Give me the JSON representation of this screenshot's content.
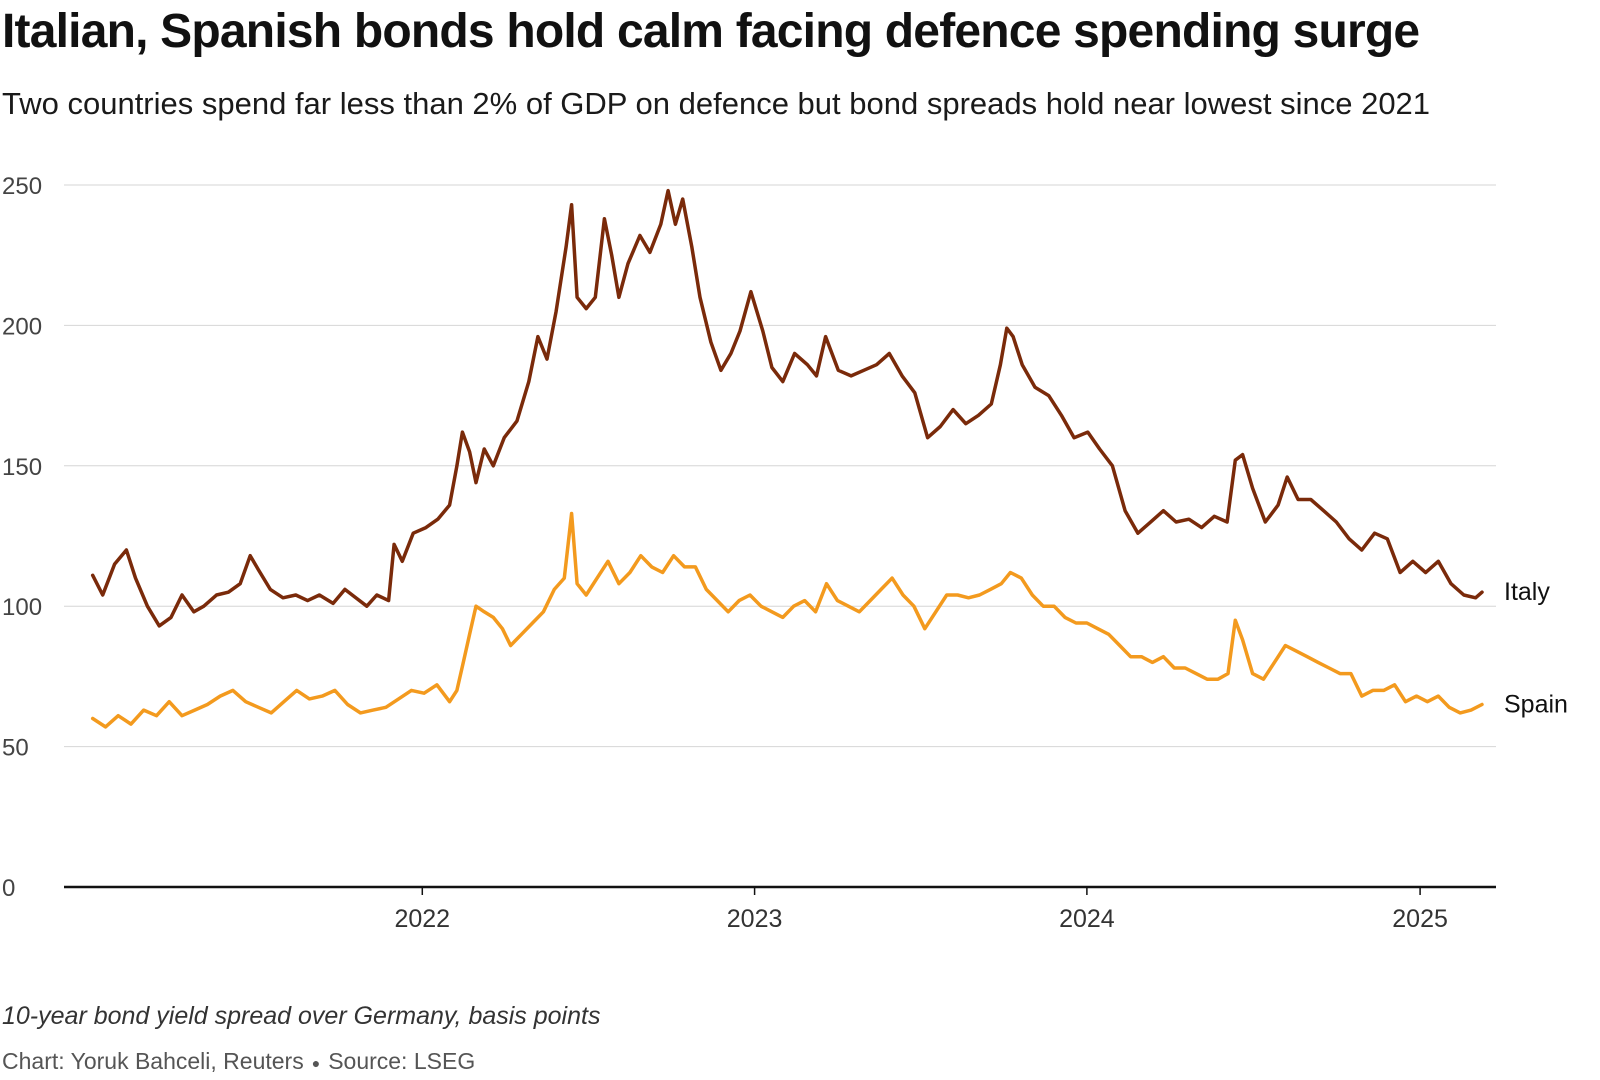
{
  "header": {
    "title": "Italian, Spanish bonds hold calm facing defence spending surge",
    "subtitle": "Two countries spend far less than 2% of GDP on defence but bond spreads hold near lowest since 2021"
  },
  "footer": {
    "note": "10-year bond yield spread over Germany, basis points",
    "credit_author": "Chart: Yoruk Bahceli, Reuters",
    "credit_source": "Source: LSEG"
  },
  "chart_data": {
    "type": "line",
    "title": "Italian, Spanish bonds hold calm facing defence spending surge",
    "ylabel": "",
    "xlabel": "",
    "ylim": [
      0,
      250
    ],
    "yticks": [
      "0",
      "50",
      "100",
      "150",
      "200",
      "250"
    ],
    "xlim": [
      "2021-01-01",
      "2025-03-10"
    ],
    "xticks": [
      "2022",
      "2023",
      "2024",
      "2025"
    ],
    "grid": true,
    "legend": "direct labels at line ends",
    "colors": {
      "Italy": "#7a2a0a",
      "Spain": "#f39a1e"
    },
    "series": [
      {
        "name": "Italy",
        "points": [
          [
            "2021-01-04",
            111
          ],
          [
            "2021-01-15",
            104
          ],
          [
            "2021-01-28",
            115
          ],
          [
            "2021-02-10",
            120
          ],
          [
            "2021-02-20",
            110
          ],
          [
            "2021-03-05",
            100
          ],
          [
            "2021-03-18",
            93
          ],
          [
            "2021-03-31",
            96
          ],
          [
            "2021-04-12",
            104
          ],
          [
            "2021-04-25",
            98
          ],
          [
            "2021-05-06",
            100
          ],
          [
            "2021-05-20",
            104
          ],
          [
            "2021-06-02",
            105
          ],
          [
            "2021-06-15",
            108
          ],
          [
            "2021-06-26",
            118
          ],
          [
            "2021-07-05",
            113
          ],
          [
            "2021-07-18",
            106
          ],
          [
            "2021-08-01",
            103
          ],
          [
            "2021-08-15",
            104
          ],
          [
            "2021-08-28",
            102
          ],
          [
            "2021-09-10",
            104
          ],
          [
            "2021-09-25",
            101
          ],
          [
            "2021-10-08",
            106
          ],
          [
            "2021-10-20",
            103
          ],
          [
            "2021-11-01",
            100
          ],
          [
            "2021-11-12",
            104
          ],
          [
            "2021-11-25",
            102
          ],
          [
            "2021-12-01",
            122
          ],
          [
            "2021-12-10",
            116
          ],
          [
            "2021-12-22",
            126
          ],
          [
            "2022-01-05",
            128
          ],
          [
            "2022-01-18",
            131
          ],
          [
            "2022-01-31",
            136
          ],
          [
            "2022-02-08",
            150
          ],
          [
            "2022-02-14",
            162
          ],
          [
            "2022-02-22",
            155
          ],
          [
            "2022-03-01",
            144
          ],
          [
            "2022-03-10",
            156
          ],
          [
            "2022-03-20",
            150
          ],
          [
            "2022-04-01",
            160
          ],
          [
            "2022-04-15",
            166
          ],
          [
            "2022-04-28",
            180
          ],
          [
            "2022-05-08",
            196
          ],
          [
            "2022-05-18",
            188
          ],
          [
            "2022-05-28",
            205
          ],
          [
            "2022-06-08",
            228
          ],
          [
            "2022-06-14",
            243
          ],
          [
            "2022-06-20",
            210
          ],
          [
            "2022-06-30",
            206
          ],
          [
            "2022-07-10",
            210
          ],
          [
            "2022-07-20",
            238
          ],
          [
            "2022-07-28",
            225
          ],
          [
            "2022-08-05",
            210
          ],
          [
            "2022-08-15",
            222
          ],
          [
            "2022-08-28",
            232
          ],
          [
            "2022-09-08",
            226
          ],
          [
            "2022-09-20",
            236
          ],
          [
            "2022-09-28",
            248
          ],
          [
            "2022-10-06",
            236
          ],
          [
            "2022-10-14",
            245
          ],
          [
            "2022-10-24",
            228
          ],
          [
            "2022-11-02",
            210
          ],
          [
            "2022-11-14",
            194
          ],
          [
            "2022-11-25",
            184
          ],
          [
            "2022-12-06",
            190
          ],
          [
            "2022-12-16",
            198
          ],
          [
            "2022-12-28",
            212
          ],
          [
            "2023-01-10",
            198
          ],
          [
            "2023-01-20",
            185
          ],
          [
            "2023-02-01",
            180
          ],
          [
            "2023-02-14",
            190
          ],
          [
            "2023-02-28",
            186
          ],
          [
            "2023-03-10",
            182
          ],
          [
            "2023-03-20",
            196
          ],
          [
            "2023-04-03",
            184
          ],
          [
            "2023-04-17",
            182
          ],
          [
            "2023-05-01",
            184
          ],
          [
            "2023-05-15",
            186
          ],
          [
            "2023-05-29",
            190
          ],
          [
            "2023-06-12",
            182
          ],
          [
            "2023-06-26",
            176
          ],
          [
            "2023-07-10",
            160
          ],
          [
            "2023-07-24",
            164
          ],
          [
            "2023-08-07",
            170
          ],
          [
            "2023-08-21",
            165
          ],
          [
            "2023-09-04",
            168
          ],
          [
            "2023-09-18",
            172
          ],
          [
            "2023-09-28",
            186
          ],
          [
            "2023-10-05",
            199
          ],
          [
            "2023-10-12",
            196
          ],
          [
            "2023-10-22",
            186
          ],
          [
            "2023-11-05",
            178
          ],
          [
            "2023-11-20",
            175
          ],
          [
            "2023-12-04",
            168
          ],
          [
            "2023-12-18",
            160
          ],
          [
            "2024-01-02",
            162
          ],
          [
            "2024-01-15",
            156
          ],
          [
            "2024-01-29",
            150
          ],
          [
            "2024-02-12",
            134
          ],
          [
            "2024-02-26",
            126
          ],
          [
            "2024-03-11",
            130
          ],
          [
            "2024-03-25",
            134
          ],
          [
            "2024-04-08",
            130
          ],
          [
            "2024-04-22",
            131
          ],
          [
            "2024-05-06",
            128
          ],
          [
            "2024-05-20",
            132
          ],
          [
            "2024-06-03",
            130
          ],
          [
            "2024-06-12",
            152
          ],
          [
            "2024-06-20",
            154
          ],
          [
            "2024-07-01",
            142
          ],
          [
            "2024-07-15",
            130
          ],
          [
            "2024-07-29",
            136
          ],
          [
            "2024-08-08",
            146
          ],
          [
            "2024-08-20",
            138
          ],
          [
            "2024-09-03",
            138
          ],
          [
            "2024-09-17",
            134
          ],
          [
            "2024-10-01",
            130
          ],
          [
            "2024-10-15",
            124
          ],
          [
            "2024-10-29",
            120
          ],
          [
            "2024-11-12",
            126
          ],
          [
            "2024-11-26",
            124
          ],
          [
            "2024-12-10",
            112
          ],
          [
            "2024-12-24",
            116
          ],
          [
            "2025-01-07",
            112
          ],
          [
            "2025-01-21",
            116
          ],
          [
            "2025-02-04",
            108
          ],
          [
            "2025-02-18",
            104
          ],
          [
            "2025-03-03",
            103
          ],
          [
            "2025-03-10",
            105
          ]
        ]
      },
      {
        "name": "Spain",
        "points": [
          [
            "2021-01-04",
            60
          ],
          [
            "2021-01-18",
            57
          ],
          [
            "2021-02-01",
            61
          ],
          [
            "2021-02-15",
            58
          ],
          [
            "2021-03-01",
            63
          ],
          [
            "2021-03-15",
            61
          ],
          [
            "2021-03-29",
            66
          ],
          [
            "2021-04-12",
            61
          ],
          [
            "2021-04-26",
            63
          ],
          [
            "2021-05-10",
            65
          ],
          [
            "2021-05-24",
            68
          ],
          [
            "2021-06-07",
            70
          ],
          [
            "2021-06-21",
            66
          ],
          [
            "2021-07-05",
            64
          ],
          [
            "2021-07-19",
            62
          ],
          [
            "2021-08-02",
            66
          ],
          [
            "2021-08-16",
            70
          ],
          [
            "2021-08-30",
            67
          ],
          [
            "2021-09-13",
            68
          ],
          [
            "2021-09-27",
            70
          ],
          [
            "2021-10-11",
            65
          ],
          [
            "2021-10-25",
            62
          ],
          [
            "2021-11-08",
            63
          ],
          [
            "2021-11-22",
            64
          ],
          [
            "2021-12-06",
            67
          ],
          [
            "2021-12-20",
            70
          ],
          [
            "2022-01-03",
            69
          ],
          [
            "2022-01-17",
            72
          ],
          [
            "2022-01-31",
            66
          ],
          [
            "2022-02-08",
            70
          ],
          [
            "2022-02-15",
            80
          ],
          [
            "2022-02-22",
            90
          ],
          [
            "2022-03-01",
            100
          ],
          [
            "2022-03-10",
            98
          ],
          [
            "2022-03-20",
            96
          ],
          [
            "2022-03-30",
            92
          ],
          [
            "2022-04-08",
            86
          ],
          [
            "2022-04-20",
            90
          ],
          [
            "2022-05-02",
            94
          ],
          [
            "2022-05-14",
            98
          ],
          [
            "2022-05-26",
            106
          ],
          [
            "2022-06-06",
            110
          ],
          [
            "2022-06-14",
            133
          ],
          [
            "2022-06-20",
            108
          ],
          [
            "2022-06-30",
            104
          ],
          [
            "2022-07-12",
            110
          ],
          [
            "2022-07-24",
            116
          ],
          [
            "2022-08-05",
            108
          ],
          [
            "2022-08-17",
            112
          ],
          [
            "2022-08-29",
            118
          ],
          [
            "2022-09-10",
            114
          ],
          [
            "2022-09-22",
            112
          ],
          [
            "2022-10-04",
            118
          ],
          [
            "2022-10-16",
            114
          ],
          [
            "2022-10-28",
            114
          ],
          [
            "2022-11-09",
            106
          ],
          [
            "2022-11-21",
            102
          ],
          [
            "2022-12-03",
            98
          ],
          [
            "2022-12-15",
            102
          ],
          [
            "2022-12-27",
            104
          ],
          [
            "2023-01-08",
            100
          ],
          [
            "2023-01-20",
            98
          ],
          [
            "2023-02-01",
            96
          ],
          [
            "2023-02-13",
            100
          ],
          [
            "2023-02-25",
            102
          ],
          [
            "2023-03-09",
            98
          ],
          [
            "2023-03-21",
            108
          ],
          [
            "2023-04-02",
            102
          ],
          [
            "2023-04-14",
            100
          ],
          [
            "2023-04-26",
            98
          ],
          [
            "2023-05-08",
            102
          ],
          [
            "2023-05-20",
            106
          ],
          [
            "2023-06-01",
            110
          ],
          [
            "2023-06-13",
            104
          ],
          [
            "2023-06-25",
            100
          ],
          [
            "2023-07-07",
            92
          ],
          [
            "2023-07-19",
            98
          ],
          [
            "2023-07-31",
            104
          ],
          [
            "2023-08-12",
            104
          ],
          [
            "2023-08-24",
            103
          ],
          [
            "2023-09-05",
            104
          ],
          [
            "2023-09-17",
            106
          ],
          [
            "2023-09-29",
            108
          ],
          [
            "2023-10-09",
            112
          ],
          [
            "2023-10-21",
            110
          ],
          [
            "2023-11-02",
            104
          ],
          [
            "2023-11-14",
            100
          ],
          [
            "2023-11-26",
            100
          ],
          [
            "2023-12-08",
            96
          ],
          [
            "2023-12-20",
            94
          ],
          [
            "2024-01-01",
            94
          ],
          [
            "2024-01-13",
            92
          ],
          [
            "2024-01-25",
            90
          ],
          [
            "2024-02-06",
            86
          ],
          [
            "2024-02-18",
            82
          ],
          [
            "2024-03-01",
            82
          ],
          [
            "2024-03-13",
            80
          ],
          [
            "2024-03-25",
            82
          ],
          [
            "2024-04-06",
            78
          ],
          [
            "2024-04-18",
            78
          ],
          [
            "2024-04-30",
            76
          ],
          [
            "2024-05-12",
            74
          ],
          [
            "2024-05-24",
            74
          ],
          [
            "2024-06-04",
            76
          ],
          [
            "2024-06-12",
            95
          ],
          [
            "2024-06-20",
            88
          ],
          [
            "2024-07-01",
            76
          ],
          [
            "2024-07-13",
            74
          ],
          [
            "2024-07-25",
            80
          ],
          [
            "2024-08-06",
            86
          ],
          [
            "2024-08-18",
            84
          ],
          [
            "2024-08-30",
            82
          ],
          [
            "2024-09-11",
            80
          ],
          [
            "2024-09-23",
            78
          ],
          [
            "2024-10-05",
            76
          ],
          [
            "2024-10-17",
            76
          ],
          [
            "2024-10-29",
            68
          ],
          [
            "2024-11-10",
            70
          ],
          [
            "2024-11-22",
            70
          ],
          [
            "2024-12-04",
            72
          ],
          [
            "2024-12-16",
            66
          ],
          [
            "2024-12-28",
            68
          ],
          [
            "2025-01-09",
            66
          ],
          [
            "2025-01-21",
            68
          ],
          [
            "2025-02-02",
            64
          ],
          [
            "2025-02-14",
            62
          ],
          [
            "2025-02-26",
            63
          ],
          [
            "2025-03-10",
            65
          ]
        ]
      }
    ]
  }
}
